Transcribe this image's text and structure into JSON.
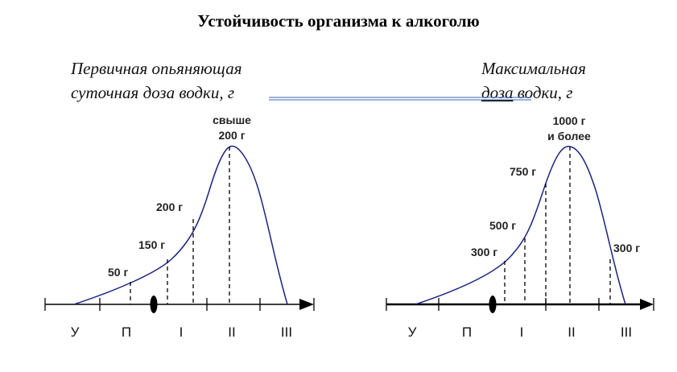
{
  "title": "Устойчивость организма к алкоголю",
  "left_caption": {
    "line1": "Первичная опьяняющая",
    "line2": "суточная доза водки, г"
  },
  "right_caption": {
    "line1": "Максимальная",
    "line2_a": "доза",
    "line2_b": " водки, г"
  },
  "left_chart": {
    "labels": {
      "d50": "50 г",
      "d150": "150 г",
      "d200": "200 г",
      "peak_line1": "свыше",
      "peak_line2": "200 г"
    },
    "stages": [
      "У",
      "П",
      "I",
      "II",
      "III"
    ]
  },
  "right_chart": {
    "labels": {
      "d300a": "300 г",
      "d500": "500 г",
      "d750": "750 г",
      "peak_line1": "1000 г",
      "peak_line2": "и более",
      "d300b": "300 г"
    },
    "stages": [
      "У",
      "П",
      "I",
      "II",
      "III"
    ]
  },
  "colors": {
    "curve": "#1a237e",
    "connector": "#3b63b5",
    "axis": "#000000"
  }
}
